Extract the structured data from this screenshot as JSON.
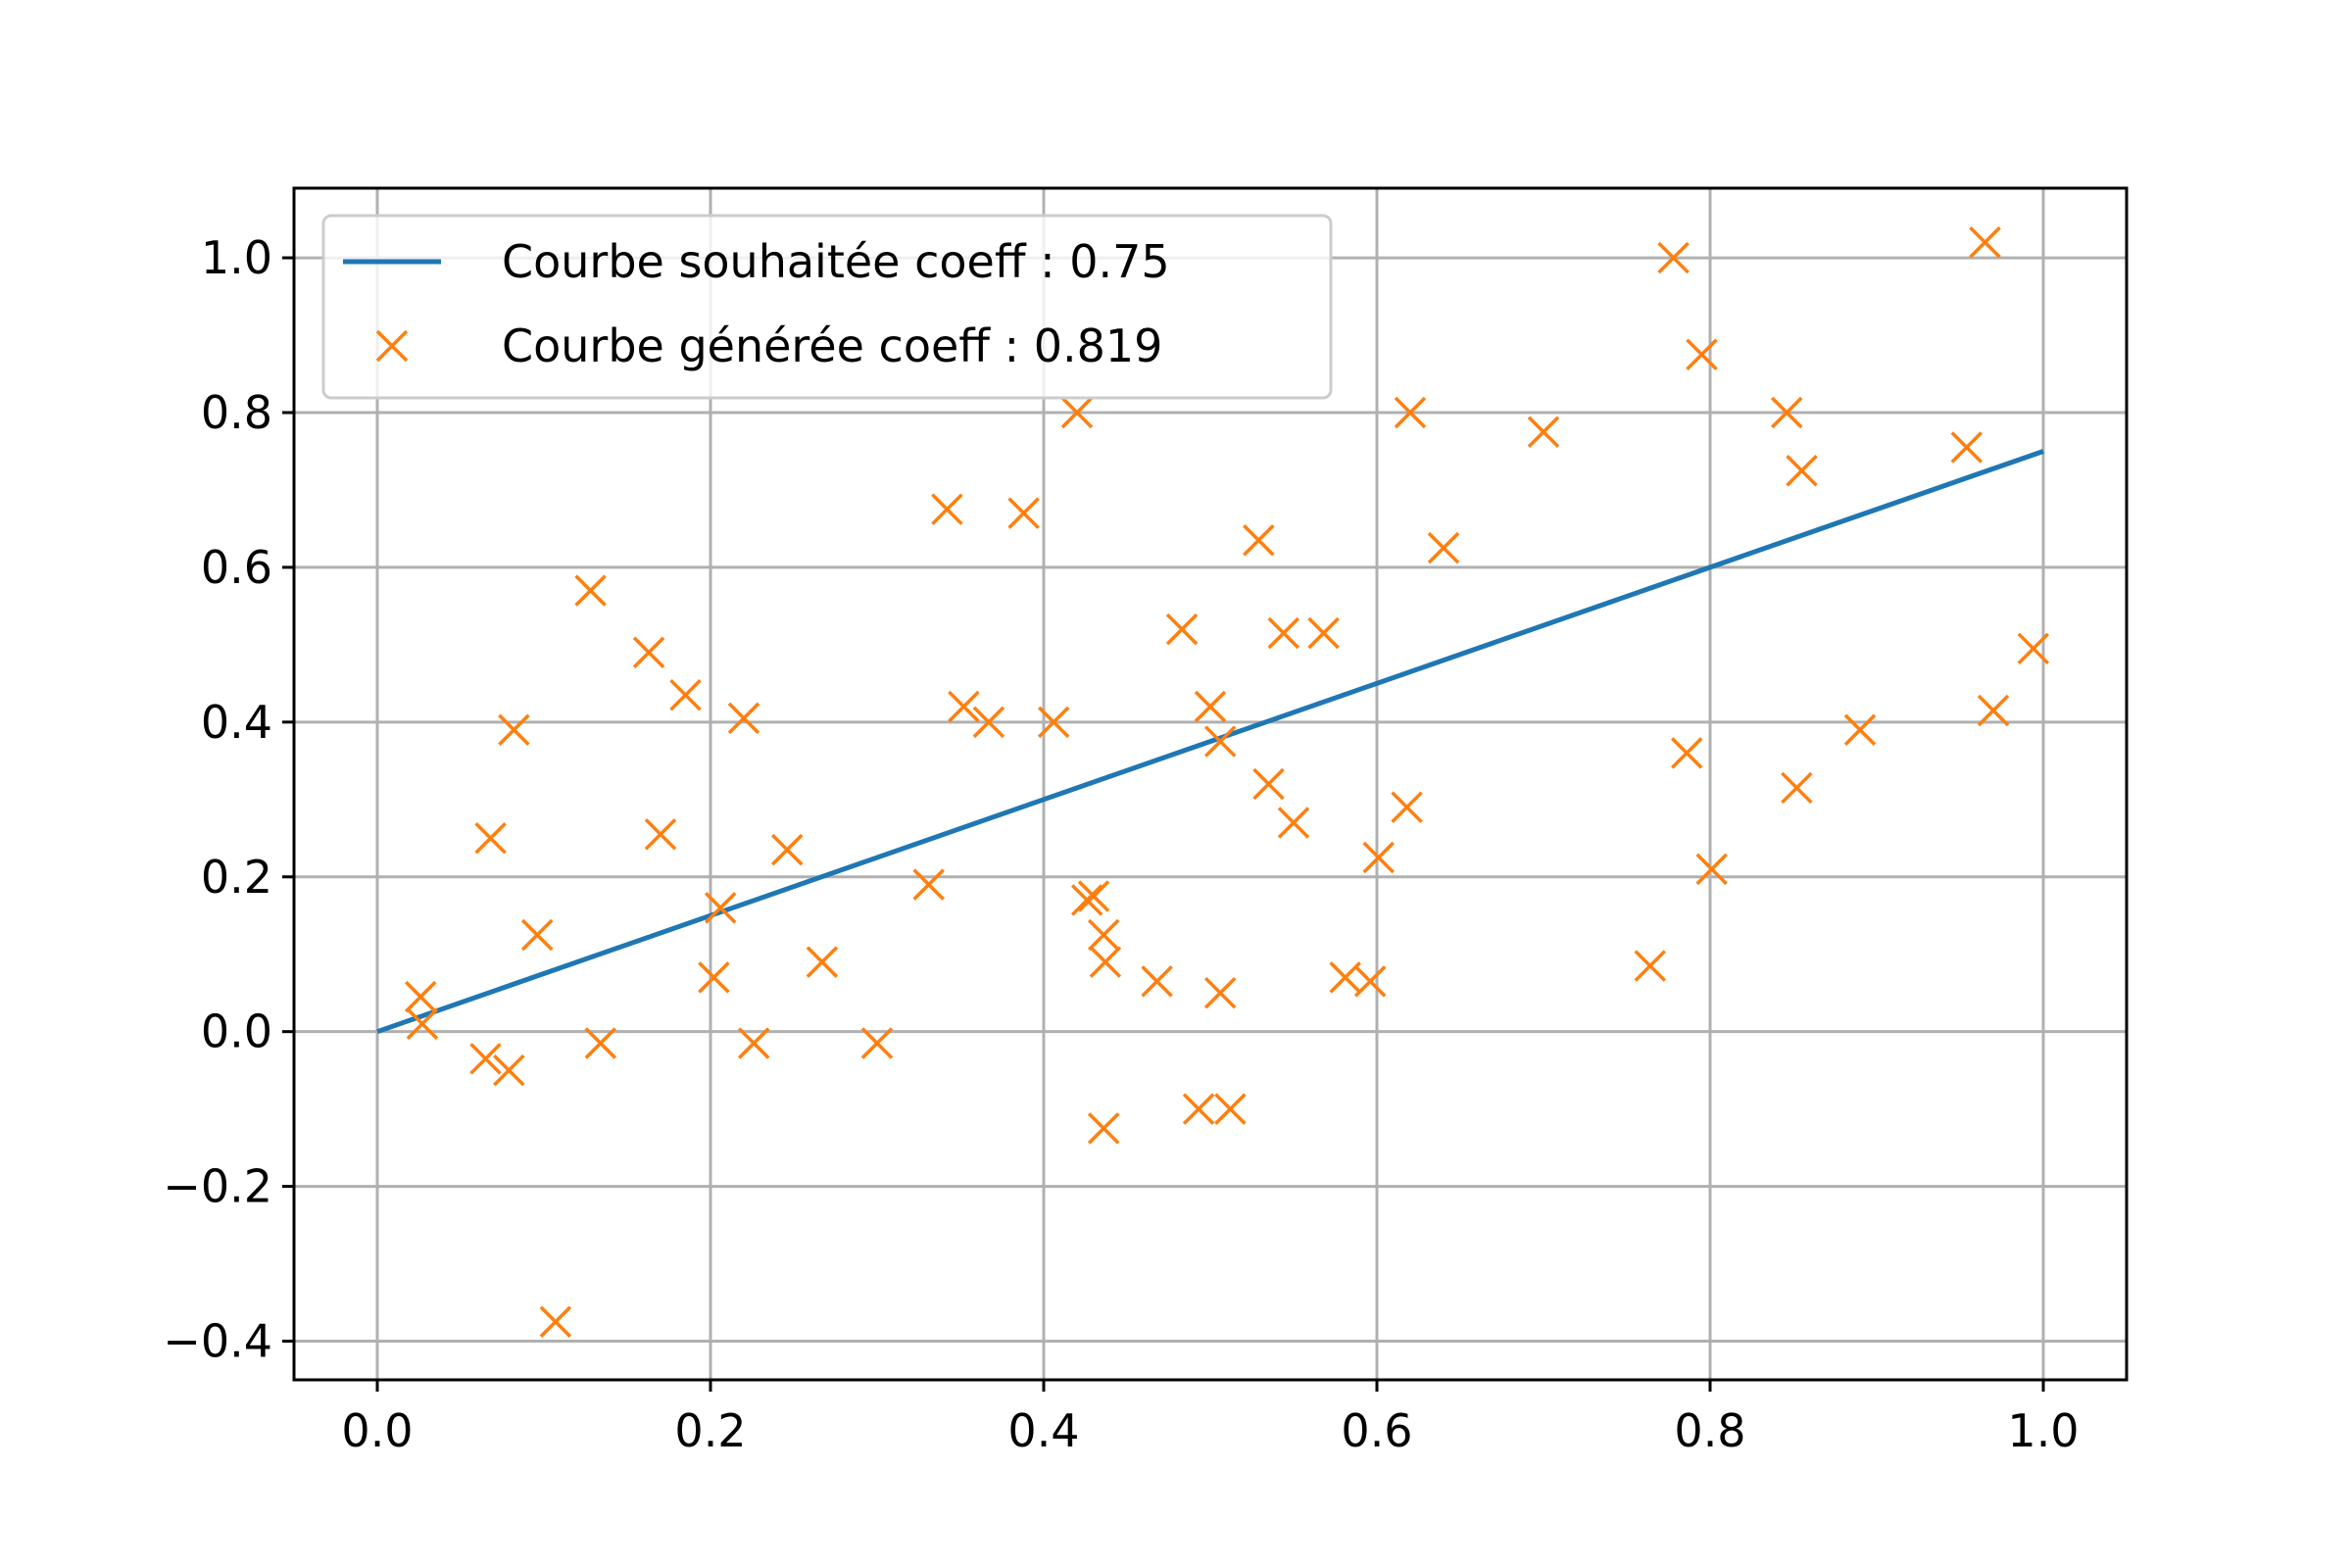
{
  "chart_data": {
    "type": "scatter",
    "title": "",
    "xlabel": "",
    "ylabel": "",
    "xlim": [
      -0.05,
      1.05
    ],
    "ylim": [
      -0.45,
      1.09
    ],
    "x_ticks": [
      0.0,
      0.2,
      0.4,
      0.6,
      0.8,
      1.0
    ],
    "x_tick_labels": [
      "0.0",
      "0.2",
      "0.4",
      "0.6",
      "0.8",
      "1.0"
    ],
    "y_ticks": [
      -0.4,
      -0.2,
      0.0,
      0.2,
      0.4,
      0.6,
      0.8,
      1.0
    ],
    "y_tick_labels": [
      "−0.4",
      "−0.2",
      "0.0",
      "0.2",
      "0.4",
      "0.6",
      "0.8",
      "1.0"
    ],
    "grid": true,
    "legend_position": "top-left",
    "series": [
      {
        "name": "Courbe souhaitée coeff : 0.75",
        "kind": "line",
        "color": "#1f77b4",
        "points": [
          [
            0.0,
            0.0
          ],
          [
            1.0,
            0.75
          ]
        ]
      },
      {
        "name": "Courbe générée coeff : 0.819",
        "kind": "scatter",
        "marker": "x",
        "color": "#ff7f0e",
        "points": [
          [
            0.026,
            0.045
          ],
          [
            0.027,
            0.01
          ],
          [
            0.065,
            -0.035
          ],
          [
            0.068,
            0.25
          ],
          [
            0.079,
            -0.05
          ],
          [
            0.082,
            0.39
          ],
          [
            0.096,
            0.125
          ],
          [
            0.107,
            -0.375
          ],
          [
            0.128,
            0.57
          ],
          [
            0.134,
            -0.015
          ],
          [
            0.163,
            0.49
          ],
          [
            0.17,
            0.255
          ],
          [
            0.185,
            0.435
          ],
          [
            0.202,
            0.07
          ],
          [
            0.206,
            0.16
          ],
          [
            0.22,
            0.405
          ],
          [
            0.226,
            -0.015
          ],
          [
            0.246,
            0.235
          ],
          [
            0.267,
            0.09
          ],
          [
            0.3,
            -0.015
          ],
          [
            0.331,
            0.19
          ],
          [
            0.342,
            0.675
          ],
          [
            0.352,
            0.42
          ],
          [
            0.367,
            0.4
          ],
          [
            0.388,
            0.67
          ],
          [
            0.406,
            0.4
          ],
          [
            0.42,
            0.8
          ],
          [
            0.426,
            0.17
          ],
          [
            0.43,
            0.175
          ],
          [
            0.436,
            0.125
          ],
          [
            0.436,
            -0.125
          ],
          [
            0.437,
            0.09
          ],
          [
            0.468,
            0.065
          ],
          [
            0.483,
            0.52
          ],
          [
            0.493,
            -0.1
          ],
          [
            0.5,
            0.42
          ],
          [
            0.506,
            0.375
          ],
          [
            0.506,
            0.05
          ],
          [
            0.512,
            -0.1
          ],
          [
            0.529,
            0.635
          ],
          [
            0.535,
            0.32
          ],
          [
            0.544,
            0.515
          ],
          [
            0.55,
            0.27
          ],
          [
            0.568,
            0.515
          ],
          [
            0.581,
            0.07
          ],
          [
            0.596,
            0.065
          ],
          [
            0.601,
            0.225
          ],
          [
            0.618,
            0.29
          ],
          [
            0.62,
            0.8
          ],
          [
            0.64,
            0.625
          ],
          [
            0.7,
            0.775
          ],
          [
            0.764,
            0.085
          ],
          [
            0.778,
            1.0
          ],
          [
            0.786,
            0.36
          ],
          [
            0.795,
            0.875
          ],
          [
            0.801,
            0.21
          ],
          [
            0.846,
            0.8
          ],
          [
            0.852,
            0.315
          ],
          [
            0.855,
            0.725
          ],
          [
            0.89,
            0.39
          ],
          [
            0.954,
            0.755
          ],
          [
            0.965,
            1.02
          ],
          [
            0.97,
            0.415
          ],
          [
            0.994,
            0.495
          ]
        ]
      }
    ]
  }
}
